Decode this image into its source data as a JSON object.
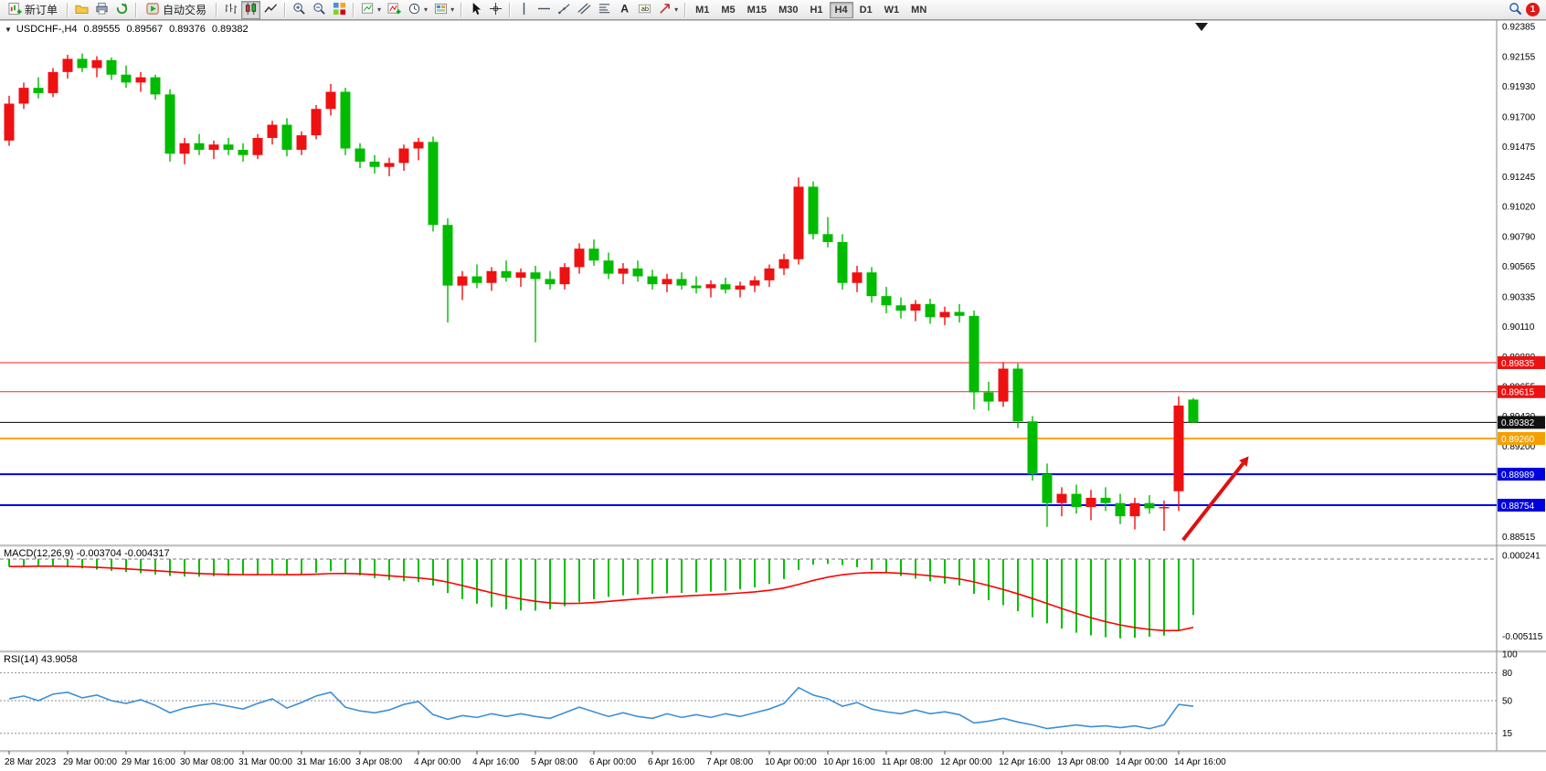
{
  "toolbar": {
    "new_order_label": "新订单",
    "autotrade_label": "自动交易",
    "timeframes": [
      "M1",
      "M5",
      "M15",
      "M30",
      "H1",
      "H4",
      "D1",
      "W1",
      "MN"
    ],
    "active_timeframe": "H4",
    "notification_count": "1"
  },
  "icons": {
    "new-order": "candlestick-plus",
    "profiles": "folder",
    "print": "printer",
    "refresh": "circular-arrows",
    "autotrade": "play-triangle",
    "bar-chart": "ohlc-bars",
    "candlestick-chart": "candles",
    "line-chart": "polyline",
    "zoom-in": "magnifier-plus",
    "zoom-out": "magnifier-minus",
    "tile-windows": "color-grid",
    "new-chart": "chart-plus",
    "indicators": "chart-line-plus",
    "periods": "clock",
    "templates": "palette",
    "cursor": "pointer-arrow",
    "crosshair": "cross",
    "vertical-line": "vline",
    "horizontal-line": "hline",
    "trendline": "diagonal",
    "channel": "parallel-lines",
    "fibonacci": "retracement-lines",
    "text": "A",
    "text-label": "boxed-text",
    "arrows": "diagonal-arrow",
    "search": "magnifier",
    "chart-menu": "down-triangle",
    "shift-marker": "down-triangle",
    "caret": "down-caret"
  },
  "chart": {
    "title": "USDCHF-,H4",
    "quote": {
      "open": "0.89555",
      "high": "0.89567",
      "low": "0.89376",
      "close": "0.89382"
    },
    "price_axis_labels": [
      "0.92385",
      "0.92155",
      "0.91930",
      "0.91700",
      "0.91475",
      "0.91245",
      "0.91020",
      "0.90790",
      "0.90565",
      "0.90335",
      "0.90110",
      "0.89880",
      "0.89655",
      "0.89430",
      "0.89200",
      "0.88975",
      "0.88750",
      "0.88515"
    ],
    "hlines": [
      {
        "price": 0.89835,
        "color": "#ff2222",
        "width": 1,
        "tag": "0.89835",
        "tag_bg": "#ee1111"
      },
      {
        "price": 0.89615,
        "color": "#ff2222",
        "width": 1,
        "tag": "0.89615",
        "tag_bg": "#ee1111"
      },
      {
        "price": 0.89382,
        "color": "#000000",
        "width": 1,
        "tag": "0.89382",
        "tag_bg": "#111111"
      },
      {
        "price": 0.8926,
        "color": "#ffa500",
        "width": 2,
        "tag": "0.89260",
        "tag_bg": "#f5a000"
      },
      {
        "price": 0.88989,
        "color": "#0000ee",
        "width": 2,
        "tag": "0.88989",
        "tag_bg": "#0000dd"
      },
      {
        "price": 0.88754,
        "color": "#0000ee",
        "width": 2,
        "tag": "0.88754",
        "tag_bg": "#0000dd"
      }
    ],
    "time_labels": [
      "28 Mar 2023",
      "29 Mar 00:00",
      "29 Mar 16:00",
      "30 Mar 08:00",
      "31 Mar 00:00",
      "31 Mar 16:00",
      "3 Apr 08:00",
      "4 Apr 00:00",
      "4 Apr 16:00",
      "5 Apr 08:00",
      "6 Apr 00:00",
      "6 Apr 16:00",
      "7 Apr 08:00",
      "10 Apr 00:00",
      "10 Apr 16:00",
      "11 Apr 08:00",
      "12 Apr 00:00",
      "12 Apr 16:00",
      "13 Apr 08:00",
      "14 Apr 00:00",
      "14 Apr 16:00"
    ],
    "time_label_indices": [
      0,
      4,
      8,
      12,
      16,
      20,
      24,
      28,
      32,
      36,
      40,
      44,
      48,
      52,
      56,
      60,
      64,
      68,
      72,
      76,
      80
    ],
    "arrow": {
      "from": {
        "candle": 80.3,
        "price": 0.8849
      },
      "to": {
        "candle": 84.4,
        "price": 0.8907
      },
      "color": "#dd1111"
    }
  },
  "indicators": {
    "macd_label": "MACD(12,26,9)",
    "macd_main": "-0.003704",
    "macd_signal": "-0.004317",
    "rsi_label": "RSI(14)",
    "rsi_value": "43.9058"
  },
  "chart_data": {
    "type": "candlestick",
    "symbol": "USDCHF-",
    "period": "H4",
    "price_range": {
      "top": 0.9242,
      "bottom": 0.8847
    },
    "colors": {
      "bull": "#ee1111",
      "bear": "#00bb00",
      "macd_hist": "#00c000",
      "macd_signal": "#ff0000",
      "rsi": "#3c8fd6",
      "hline_red": "#ff2222",
      "hline_blue": "#0000ee",
      "hline_orange": "#ffa500"
    },
    "candles": [
      [
        0.9152,
        0.9186,
        0.9148,
        0.918
      ],
      [
        0.918,
        0.9196,
        0.9176,
        0.9192
      ],
      [
        0.9192,
        0.92,
        0.9184,
        0.9188
      ],
      [
        0.9188,
        0.9207,
        0.9185,
        0.9204
      ],
      [
        0.9204,
        0.9217,
        0.9199,
        0.9214
      ],
      [
        0.9214,
        0.9218,
        0.9204,
        0.9207
      ],
      [
        0.9207,
        0.9216,
        0.92,
        0.9213
      ],
      [
        0.9213,
        0.9215,
        0.9198,
        0.9202
      ],
      [
        0.9202,
        0.9209,
        0.9192,
        0.9196
      ],
      [
        0.9196,
        0.9204,
        0.9189,
        0.92
      ],
      [
        0.92,
        0.9202,
        0.9183,
        0.9187
      ],
      [
        0.9187,
        0.9191,
        0.9136,
        0.9142
      ],
      [
        0.9142,
        0.9154,
        0.9134,
        0.915
      ],
      [
        0.915,
        0.9157,
        0.9141,
        0.9145
      ],
      [
        0.9145,
        0.9152,
        0.9138,
        0.9149
      ],
      [
        0.9149,
        0.9154,
        0.9141,
        0.9145
      ],
      [
        0.9145,
        0.915,
        0.9136,
        0.9141
      ],
      [
        0.9141,
        0.9157,
        0.9138,
        0.9154
      ],
      [
        0.9154,
        0.9167,
        0.9149,
        0.9164
      ],
      [
        0.9164,
        0.9169,
        0.914,
        0.9145
      ],
      [
        0.9145,
        0.9159,
        0.9141,
        0.9156
      ],
      [
        0.9156,
        0.9179,
        0.9153,
        0.9176
      ],
      [
        0.9176,
        0.9195,
        0.9171,
        0.9189
      ],
      [
        0.9189,
        0.9192,
        0.9141,
        0.9146
      ],
      [
        0.9146,
        0.915,
        0.9131,
        0.9136
      ],
      [
        0.9136,
        0.9141,
        0.9127,
        0.9132
      ],
      [
        0.9132,
        0.9139,
        0.9125,
        0.9135
      ],
      [
        0.9135,
        0.9149,
        0.9129,
        0.9146
      ],
      [
        0.9146,
        0.9154,
        0.9137,
        0.9151
      ],
      [
        0.9151,
        0.9155,
        0.9083,
        0.9088
      ],
      [
        0.9088,
        0.9093,
        0.9014,
        0.9042
      ],
      [
        0.9042,
        0.9053,
        0.9031,
        0.9049
      ],
      [
        0.9049,
        0.9058,
        0.904,
        0.9044
      ],
      [
        0.9044,
        0.9056,
        0.9038,
        0.9053
      ],
      [
        0.9053,
        0.9061,
        0.9045,
        0.9048
      ],
      [
        0.9048,
        0.9055,
        0.9041,
        0.9052
      ],
      [
        0.9052,
        0.9057,
        0.8999,
        0.9047
      ],
      [
        0.9047,
        0.9053,
        0.9039,
        0.9043
      ],
      [
        0.9043,
        0.9059,
        0.9039,
        0.9056
      ],
      [
        0.9056,
        0.9074,
        0.9051,
        0.907
      ],
      [
        0.907,
        0.9077,
        0.9057,
        0.9061
      ],
      [
        0.9061,
        0.9067,
        0.9047,
        0.9051
      ],
      [
        0.9051,
        0.9059,
        0.9043,
        0.9055
      ],
      [
        0.9055,
        0.9061,
        0.9045,
        0.9049
      ],
      [
        0.9049,
        0.9054,
        0.9039,
        0.9043
      ],
      [
        0.9043,
        0.9051,
        0.9037,
        0.9047
      ],
      [
        0.9047,
        0.9052,
        0.9039,
        0.9042
      ],
      [
        0.9042,
        0.9049,
        0.9036,
        0.904
      ],
      [
        0.904,
        0.9046,
        0.9033,
        0.9043
      ],
      [
        0.9043,
        0.9048,
        0.9036,
        0.9039
      ],
      [
        0.9039,
        0.9045,
        0.9033,
        0.9042
      ],
      [
        0.9042,
        0.9049,
        0.9037,
        0.9046
      ],
      [
        0.9046,
        0.9058,
        0.9041,
        0.9055
      ],
      [
        0.9055,
        0.9066,
        0.905,
        0.9062
      ],
      [
        0.9062,
        0.9124,
        0.9058,
        0.9117
      ],
      [
        0.9117,
        0.9121,
        0.9077,
        0.9081
      ],
      [
        0.9081,
        0.9094,
        0.9071,
        0.9075
      ],
      [
        0.9075,
        0.9081,
        0.9039,
        0.9044
      ],
      [
        0.9044,
        0.9057,
        0.9037,
        0.9052
      ],
      [
        0.9052,
        0.9056,
        0.9029,
        0.9034
      ],
      [
        0.9034,
        0.9041,
        0.9021,
        0.9027
      ],
      [
        0.9027,
        0.9033,
        0.9017,
        0.9023
      ],
      [
        0.9023,
        0.9031,
        0.9015,
        0.9028
      ],
      [
        0.9028,
        0.9032,
        0.9013,
        0.9018
      ],
      [
        0.9018,
        0.9026,
        0.9012,
        0.9022
      ],
      [
        0.9022,
        0.9028,
        0.9014,
        0.9019
      ],
      [
        0.9019,
        0.9023,
        0.8948,
        0.8961
      ],
      [
        0.8961,
        0.8969,
        0.8947,
        0.8954
      ],
      [
        0.8954,
        0.8984,
        0.895,
        0.8979
      ],
      [
        0.8979,
        0.8983,
        0.8934,
        0.8939
      ],
      [
        0.8939,
        0.8943,
        0.8894,
        0.8899
      ],
      [
        0.8899,
        0.8907,
        0.8859,
        0.8877
      ],
      [
        0.8877,
        0.8889,
        0.8867,
        0.8884
      ],
      [
        0.8884,
        0.8891,
        0.8869,
        0.8874
      ],
      [
        0.8874,
        0.8887,
        0.8864,
        0.8881
      ],
      [
        0.8881,
        0.8889,
        0.8871,
        0.8877
      ],
      [
        0.8877,
        0.8884,
        0.8861,
        0.8867
      ],
      [
        0.8867,
        0.8881,
        0.8857,
        0.8877
      ],
      [
        0.8877,
        0.8883,
        0.8869,
        0.8873
      ],
      [
        0.8873,
        0.8879,
        0.8856,
        0.8874
      ],
      [
        0.8886,
        0.8958,
        0.8871,
        0.8951
      ],
      [
        0.89555,
        0.89567,
        0.89376,
        0.89382
      ]
    ],
    "macd": {
      "scale": {
        "top": 0.0006,
        "bottom": -0.0058
      },
      "axis": [
        "0.000241",
        "-0.005115"
      ],
      "values": [
        -0.0005,
        -0.00045,
        -0.00042,
        -0.00046,
        -0.00054,
        -0.00062,
        -0.0007,
        -0.00078,
        -0.00086,
        -0.00094,
        -0.00102,
        -0.00112,
        -0.00116,
        -0.00117,
        -0.00114,
        -0.00111,
        -0.00108,
        -0.00105,
        -0.00102,
        -0.00106,
        -0.001,
        -0.0009,
        -0.0008,
        -0.00092,
        -0.00108,
        -0.00126,
        -0.0014,
        -0.00147,
        -0.00152,
        -0.00175,
        -0.00225,
        -0.00265,
        -0.00295,
        -0.00318,
        -0.00332,
        -0.0034,
        -0.00341,
        -0.00333,
        -0.00312,
        -0.00286,
        -0.00266,
        -0.0025,
        -0.0024,
        -0.00234,
        -0.0023,
        -0.00227,
        -0.00224,
        -0.00221,
        -0.00216,
        -0.0021,
        -0.002,
        -0.00187,
        -0.00165,
        -0.00132,
        -0.00072,
        -0.00038,
        -0.00032,
        -0.0004,
        -0.00054,
        -0.00072,
        -0.00092,
        -0.00112,
        -0.0013,
        -0.00147,
        -0.00162,
        -0.00175,
        -0.0023,
        -0.00272,
        -0.00305,
        -0.00345,
        -0.00385,
        -0.00425,
        -0.0046,
        -0.00487,
        -0.00505,
        -0.00517,
        -0.00524,
        -0.00521,
        -0.00514,
        -0.00506,
        -0.0047,
        -0.003704
      ]
    },
    "rsi": {
      "axis": [
        "100",
        "80",
        "50",
        "15"
      ],
      "levels": [
        80,
        50,
        15
      ],
      "values": [
        52,
        55,
        50,
        57,
        59,
        53,
        56,
        50,
        47,
        51,
        45,
        37,
        42,
        45,
        47,
        44,
        41,
        47,
        52,
        42,
        48,
        55,
        59,
        43,
        39,
        37,
        40,
        46,
        49,
        35,
        30,
        34,
        32,
        36,
        33,
        36,
        33,
        31,
        37,
        43,
        38,
        33,
        37,
        33,
        31,
        36,
        32,
        35,
        32,
        36,
        33,
        37,
        41,
        47,
        64,
        56,
        52,
        44,
        48,
        41,
        38,
        36,
        40,
        36,
        38,
        35,
        26,
        28,
        31,
        27,
        24,
        20,
        22,
        24,
        22,
        23,
        21,
        23,
        20,
        24,
        46,
        43.9
      ]
    }
  }
}
